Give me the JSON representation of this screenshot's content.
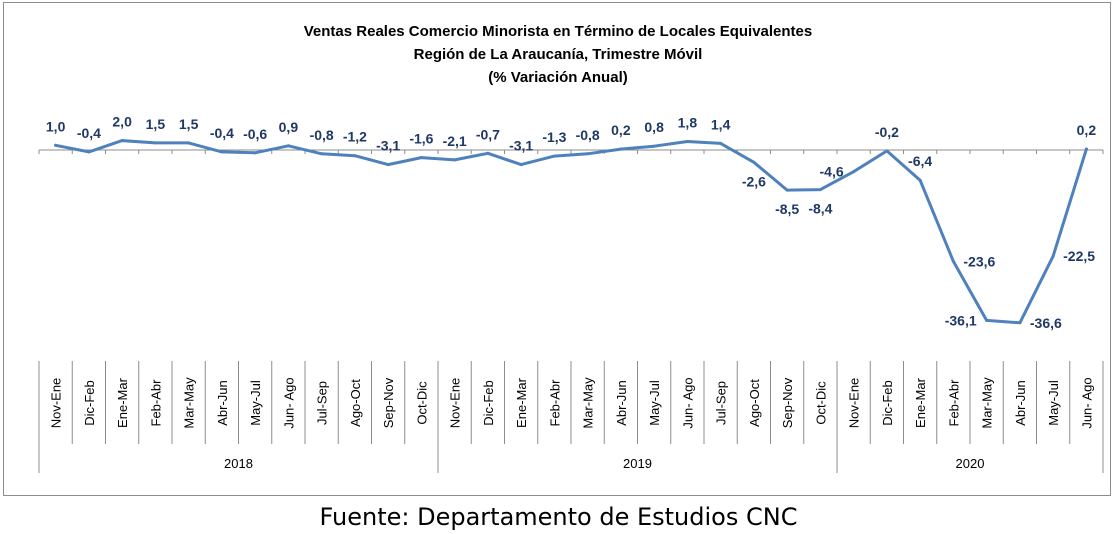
{
  "chart_data": {
    "type": "line",
    "title": "Ventas Reales Comercio Minorista  en Término de Locales Equivalentes",
    "subtitle": "Región de La Araucanía, Trimestre Móvil",
    "unit_label": "(% Variación Anual)",
    "categories": [
      "Nov-Ene",
      "Dic-Feb",
      "Ene-Mar",
      "Feb-Abr",
      "Mar-May",
      "Abr-Jun",
      "May-Jul",
      "Jun- Ago",
      "Jul-Sep",
      "Ago-Oct",
      "Sep-Nov",
      "Oct-Dic",
      "Nov-Ene",
      "Dic-Feb",
      "Ene-Mar",
      "Feb-Abr",
      "Mar-May",
      "Abr-Jun",
      "May-Jul",
      "Jun- Ago",
      "Jul-Sep",
      "Ago-Oct",
      "Sep-Nov",
      "Oct-Dic",
      "Nov-Ene",
      "Dic-Feb",
      "Ene-Mar",
      "Feb-Abr",
      "Mar-May",
      "Abr-Jun",
      "May-Jul",
      "Jun- Ago"
    ],
    "years": [
      {
        "label": "2018",
        "start": 0,
        "count": 12
      },
      {
        "label": "2019",
        "start": 12,
        "count": 12
      },
      {
        "label": "2020",
        "start": 24,
        "count": 8
      }
    ],
    "series": [
      {
        "values": [
          1.0,
          -0.4,
          2.0,
          1.5,
          1.5,
          -0.4,
          -0.6,
          0.9,
          -0.8,
          -1.2,
          -3.1,
          -1.6,
          -2.1,
          -0.7,
          -3.1,
          -1.3,
          -0.8,
          0.2,
          0.8,
          1.8,
          1.4,
          -2.6,
          -8.5,
          -8.4,
          -4.6,
          -0.2,
          -6.4,
          -23.6,
          -36.1,
          -36.6,
          -22.5,
          0.2
        ],
        "labels": [
          "1,0",
          "-0,4",
          "2,0",
          "1,5",
          "1,5",
          "-0,4",
          "-0,6",
          "0,9",
          "-0,8",
          "-1,2",
          "-3,1",
          "-1,6",
          "-2,1",
          "-0,7",
          "-3,1",
          "-1,3",
          "-0,8",
          "0,2",
          "0,8",
          "1,8",
          "1,4",
          "-2,6",
          "-8,5",
          "-8,4",
          "-4,6",
          "-0,2",
          "-6,4",
          "-23,6",
          "-36,1",
          "-36,6",
          "-22,5",
          "0,2"
        ],
        "label_positions": [
          "above",
          "above",
          "above",
          "above",
          "above",
          "above",
          "above",
          "above",
          "above",
          "above",
          "above",
          "above",
          "above",
          "above",
          "above",
          "above",
          "above",
          "above",
          "above",
          "above",
          "above",
          "below",
          "below",
          "below",
          "left",
          "above",
          "above",
          "right",
          "left",
          "right",
          "right",
          "above"
        ]
      }
    ],
    "line_color": "#4f81bd",
    "label_color": "#1f3864",
    "ylim": [
      -40,
      3
    ],
    "grid": false,
    "legend": "none"
  },
  "source": "Fuente: Departamento de Estudios CNC"
}
